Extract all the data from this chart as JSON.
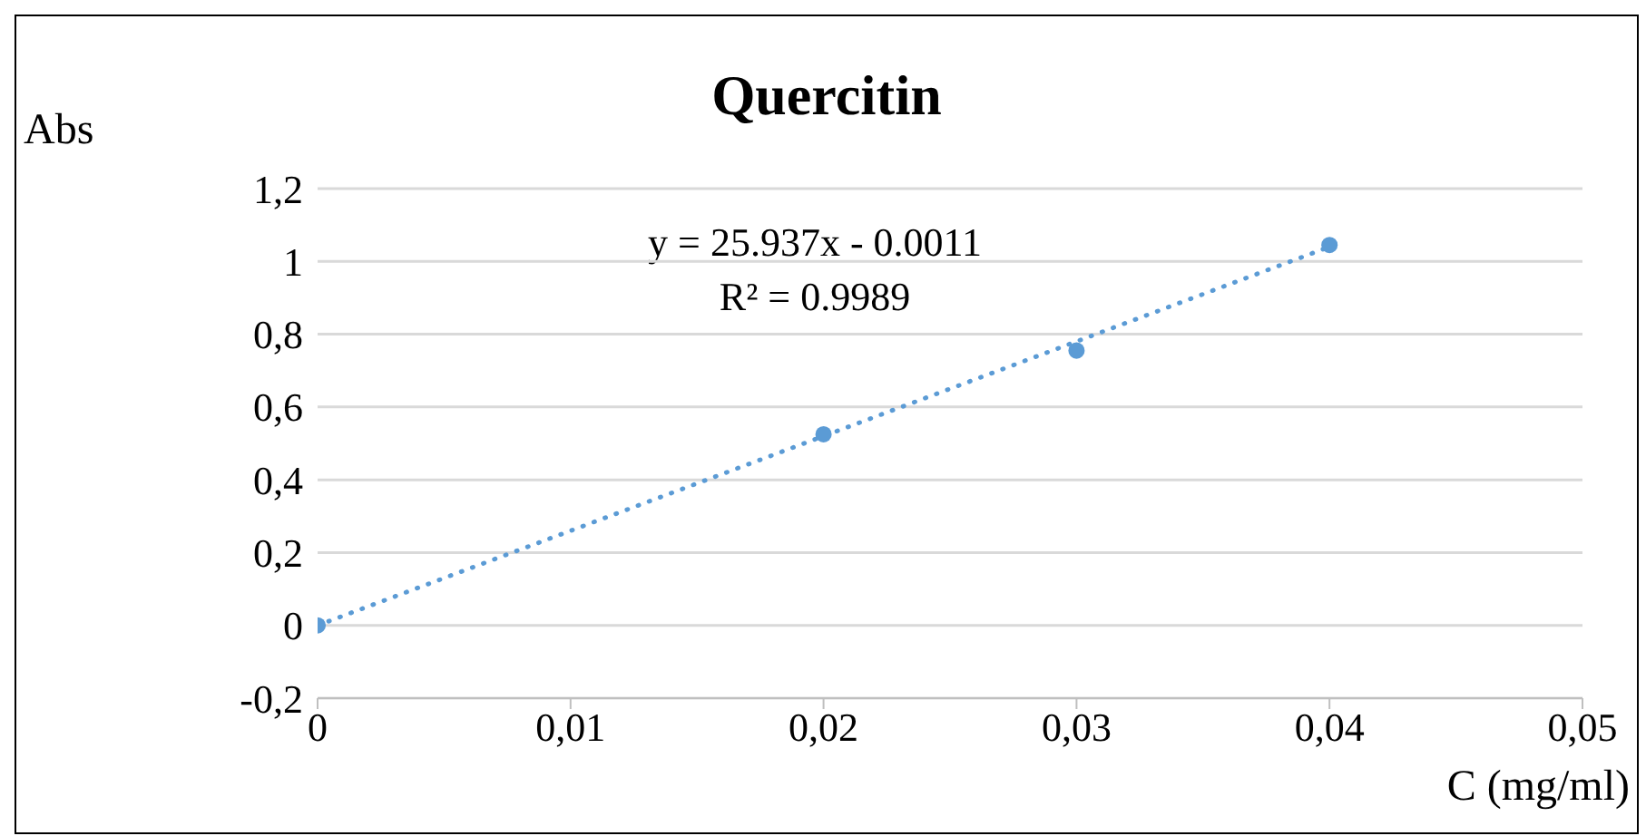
{
  "chart_data": {
    "type": "scatter",
    "title": "Quercitin",
    "xlabel": "C (mg/ml)",
    "ylabel": "Abs",
    "annotations": [
      "y = 25.937x - 0.0011",
      "R² = 0.9989"
    ],
    "x": [
      0,
      0.02,
      0.03,
      0.04
    ],
    "series": [
      {
        "color": "#5b9bd5",
        "values": [
          0,
          0.525,
          0.755,
          1.045
        ],
        "marker": "circle"
      },
      {
        "type": "line",
        "color": "#5b9bd5",
        "x": [
          0,
          0.04
        ],
        "values": [
          0,
          1.04
        ],
        "line_style": "dotted",
        "marker": "none"
      }
    ],
    "xlim": [
      0,
      0.05
    ],
    "xticks": [
      0,
      {
        "value": 0.01,
        "label": "0,01"
      },
      {
        "value": 0.02,
        "label": "0,02"
      },
      {
        "value": 0.03,
        "label": "0,03"
      },
      {
        "value": 0.04,
        "label": "0,04"
      },
      {
        "value": 0.05,
        "label": "0,05"
      }
    ],
    "ylim": [
      -0.2,
      1.2
    ],
    "yticks": [
      {
        "value": -0.2,
        "label": "-0,2"
      },
      0,
      {
        "value": 0.2,
        "label": "0,2"
      },
      {
        "value": 0.4,
        "label": "0,4"
      },
      {
        "value": 0.6,
        "label": "0,6"
      },
      {
        "value": 0.8,
        "label": "0,8"
      },
      1,
      {
        "value": 1.2,
        "label": "1,2"
      }
    ],
    "grid": "y"
  }
}
